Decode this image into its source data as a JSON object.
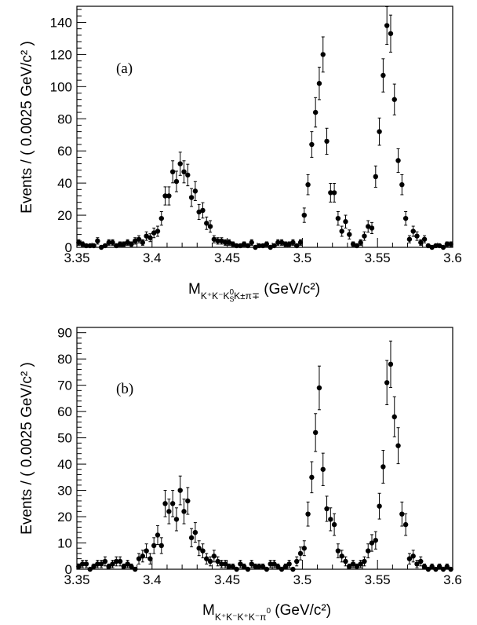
{
  "chart_data": [
    {
      "type": "scatter",
      "panel_label": "(a)",
      "xlabel_main": "M",
      "xlabel_sub": "K⁺K⁻K",
      "xlabel_sub_s": "S",
      "xlabel_sub_0": "0",
      "xlabel_sub_rest": "K±π∓",
      "xlabel_unit": " (GeV/c²)",
      "ylabel": "Events / ( 0.0025 GeV/c² )",
      "xlim": [
        3.35,
        3.6
      ],
      "ylim": [
        0,
        150
      ],
      "x_ticks": [
        "3.35",
        "3.4",
        "3.45",
        "3.5",
        "3.55",
        "3.6"
      ],
      "y_ticks": [
        "0",
        "20",
        "40",
        "60",
        "80",
        "100",
        "120",
        "140"
      ],
      "y_tick_values": [
        0,
        20,
        40,
        60,
        80,
        100,
        120,
        140
      ],
      "grid": false,
      "series": [
        {
          "x": [
            3.35125,
            3.35375,
            3.35625,
            3.35875,
            3.36125,
            3.36375,
            3.36625,
            3.36875,
            3.37125,
            3.37375,
            3.37625,
            3.37875,
            3.38125,
            3.38375,
            3.38625,
            3.38875,
            3.39125,
            3.39375,
            3.39625,
            3.39875,
            3.40125,
            3.40375,
            3.40625,
            3.40875,
            3.41125,
            3.41375,
            3.41625,
            3.41875,
            3.42125,
            3.42375,
            3.42625,
            3.42875,
            3.43125,
            3.43375,
            3.43625,
            3.43875,
            3.44125,
            3.44375,
            3.44625,
            3.44875,
            3.45125,
            3.45375,
            3.45625,
            3.45875,
            3.46125,
            3.46375,
            3.46625,
            3.46875,
            3.47125,
            3.47375,
            3.47625,
            3.47875,
            3.48125,
            3.48375,
            3.48625,
            3.48875,
            3.49125,
            3.49375,
            3.49625,
            3.49875,
            3.50125,
            3.50375,
            3.50625,
            3.50875,
            3.51125,
            3.51375,
            3.51625,
            3.51875,
            3.52125,
            3.52375,
            3.52625,
            3.52875,
            3.53125,
            3.53375,
            3.53625,
            3.53875,
            3.54125,
            3.54375,
            3.54625,
            3.54875,
            3.55125,
            3.55375,
            3.55625,
            3.55875,
            3.56125,
            3.56375,
            3.56625,
            3.56875,
            3.57125,
            3.57375,
            3.57625,
            3.57875,
            3.58125,
            3.58375,
            3.58625,
            3.58875,
            3.59125,
            3.59375,
            3.59625,
            3.59875
          ],
          "y": [
            3,
            2,
            1,
            1,
            1,
            4,
            0,
            1,
            3,
            3,
            1,
            2,
            2,
            3,
            2,
            4,
            5,
            3,
            7,
            6,
            9,
            10,
            18,
            32,
            32,
            47,
            41,
            52,
            47,
            45,
            31,
            35,
            22,
            23,
            15,
            13,
            5,
            4,
            4,
            3,
            3,
            2,
            1,
            1,
            2,
            1,
            3,
            0,
            1,
            1,
            2,
            0,
            1,
            3,
            3,
            2,
            2,
            3,
            1,
            3,
            20,
            39,
            64,
            84,
            102,
            120,
            66,
            34,
            34,
            18,
            10,
            16,
            8,
            2,
            1,
            3,
            7,
            13,
            12,
            44,
            72,
            107,
            138,
            133,
            92,
            54,
            39,
            18,
            5,
            10,
            7,
            3,
            5,
            1,
            0,
            1,
            1,
            0,
            2,
            2
          ]
        }
      ]
    },
    {
      "type": "scatter",
      "panel_label": "(b)",
      "xlabel_main": "M",
      "xlabel_sub": "K⁺K⁻K⁺K⁻π",
      "xlabel_sub_0": "0",
      "xlabel_unit": " (GeV/c²)",
      "ylabel": "Events / ( 0.0025 GeV/c² )",
      "xlim": [
        3.35,
        3.6
      ],
      "ylim": [
        0,
        92
      ],
      "x_ticks": [
        "3.35",
        "3.4",
        "3.45",
        "3.5",
        "3.55",
        "3.6"
      ],
      "y_ticks": [
        "0",
        "10",
        "20",
        "30",
        "40",
        "50",
        "60",
        "70",
        "80",
        "90"
      ],
      "y_tick_values": [
        0,
        10,
        20,
        30,
        40,
        50,
        60,
        70,
        80,
        90
      ],
      "grid": false,
      "series": [
        {
          "x": [
            3.35125,
            3.35375,
            3.35625,
            3.35875,
            3.36125,
            3.36375,
            3.36625,
            3.36875,
            3.37125,
            3.37375,
            3.37625,
            3.37875,
            3.38125,
            3.38375,
            3.38625,
            3.38875,
            3.39125,
            3.39375,
            3.39625,
            3.39875,
            3.40125,
            3.40375,
            3.40625,
            3.40875,
            3.41125,
            3.41375,
            3.41625,
            3.41875,
            3.42125,
            3.42375,
            3.42625,
            3.42875,
            3.43125,
            3.43375,
            3.43625,
            3.43875,
            3.44125,
            3.44375,
            3.44625,
            3.44875,
            3.45125,
            3.45375,
            3.45625,
            3.45875,
            3.46125,
            3.46375,
            3.46625,
            3.46875,
            3.47125,
            3.47375,
            3.47625,
            3.47875,
            3.48125,
            3.48375,
            3.48625,
            3.48875,
            3.49125,
            3.49375,
            3.49625,
            3.49875,
            3.50125,
            3.50375,
            3.50625,
            3.50875,
            3.51125,
            3.51375,
            3.51625,
            3.51875,
            3.52125,
            3.52375,
            3.52625,
            3.52875,
            3.53125,
            3.53375,
            3.53625,
            3.53875,
            3.54125,
            3.54375,
            3.54625,
            3.54875,
            3.55125,
            3.55375,
            3.55625,
            3.55875,
            3.56125,
            3.56375,
            3.56625,
            3.56875,
            3.57125,
            3.57375,
            3.57625,
            3.57875,
            3.58125,
            3.58375,
            3.58625,
            3.58875,
            3.59125,
            3.59375,
            3.59625,
            3.59875
          ],
          "y": [
            1,
            2,
            2,
            0,
            1,
            2,
            2,
            3,
            1,
            2,
            3,
            3,
            1,
            2,
            1,
            0,
            4,
            5,
            7,
            4,
            9,
            13,
            9,
            25,
            22,
            25,
            19,
            30,
            22,
            26,
            12,
            14,
            8,
            7,
            4,
            3,
            5,
            3,
            2,
            2,
            1,
            1,
            0,
            2,
            1,
            0,
            2,
            1,
            1,
            1,
            0,
            2,
            2,
            1,
            0,
            1,
            2,
            0,
            3,
            6,
            8,
            21,
            35,
            52,
            69,
            38,
            23,
            19,
            17,
            7,
            5,
            3,
            1,
            2,
            1,
            2,
            3,
            7,
            10,
            11,
            24,
            39,
            71,
            78,
            58,
            47,
            21,
            17,
            4,
            5,
            2,
            3,
            1,
            0,
            1,
            0,
            1,
            0,
            1,
            0
          ]
        }
      ]
    }
  ]
}
